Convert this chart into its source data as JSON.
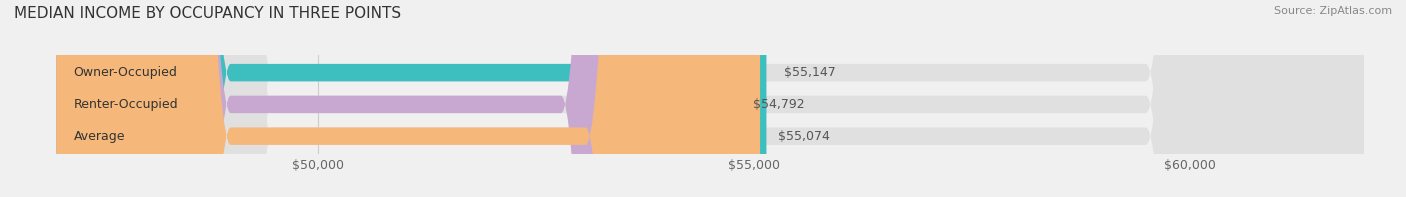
{
  "title": "MEDIAN INCOME BY OCCUPANCY IN THREE POINTS",
  "source": "Source: ZipAtlas.com",
  "categories": [
    "Owner-Occupied",
    "Renter-Occupied",
    "Average"
  ],
  "values": [
    55147,
    54792,
    55074
  ],
  "labels": [
    "$55,147",
    "$54,792",
    "$55,074"
  ],
  "bar_colors": [
    "#3dbfbf",
    "#c8a8d0",
    "#f5b87a"
  ],
  "background_color": "#f0f0f0",
  "bar_bg_color": "#e0e0e0",
  "xlim": [
    47000,
    62000
  ],
  "xticks": [
    50000,
    55000,
    60000
  ],
  "xtick_labels": [
    "$50,000",
    "$55,000",
    "$60,000"
  ],
  "title_fontsize": 11,
  "label_fontsize": 9,
  "tick_fontsize": 9,
  "bar_height": 0.55
}
